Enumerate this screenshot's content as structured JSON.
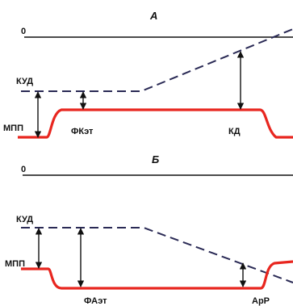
{
  "panels": {
    "a": {
      "title": "А",
      "zero_label": "0",
      "kud_label": "КУД",
      "mpp_label": "МПП",
      "fkzt_label": "ФКэт",
      "kd_label": "КД"
    },
    "b": {
      "title": "Б",
      "zero_label": "0",
      "kud_label": "КУД",
      "mpp_label": "МПП",
      "fazt_label": "ФАэт",
      "arp_label": "АрР"
    }
  },
  "colors": {
    "membrane_potential": "#e8261f",
    "threshold_dashed": "#2a2a55",
    "zero_line": "#111111",
    "arrows": "#111111"
  }
}
